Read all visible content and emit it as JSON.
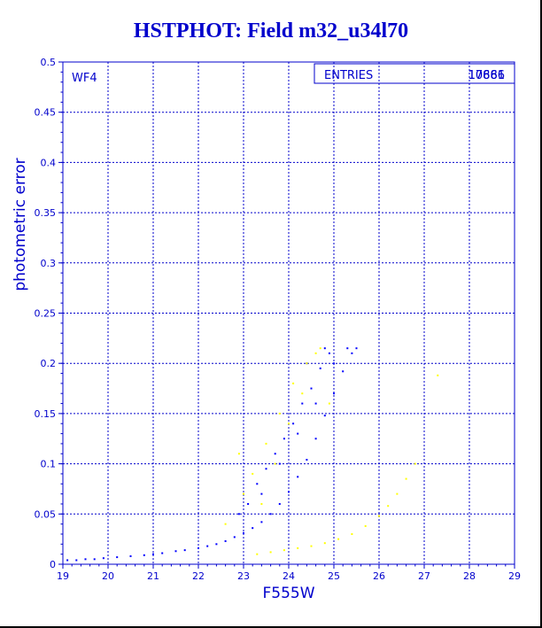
{
  "chart_data": {
    "type": "scatter",
    "title": "HSTPHOT: Field m32_u34l70",
    "xlabel": "F555W",
    "ylabel": "photometric error",
    "xlim": [
      19,
      29
    ],
    "ylim": [
      0,
      0.5
    ],
    "grid": true,
    "xticks": [
      "19",
      "20",
      "21",
      "22",
      "23",
      "24",
      "25",
      "26",
      "27",
      "28",
      "29"
    ],
    "yticks": [
      "0",
      "0.05",
      "0.1",
      "0.15",
      "0.2",
      "0.25",
      "0.3",
      "0.35",
      "0.4",
      "0.45",
      "0.5"
    ],
    "chip_label": "WF4",
    "stats_box": {
      "label": "ENTRIES",
      "value_overlay_1": "17666",
      "value_overlay_2": "10881"
    },
    "series": [
      {
        "color": "#0000ff",
        "description": "main sequence of stars along error-magnitude relation",
        "points": [
          [
            19.1,
            0.004
          ],
          [
            19.3,
            0.004
          ],
          [
            19.5,
            0.005
          ],
          [
            19.7,
            0.005
          ],
          [
            19.9,
            0.006
          ],
          [
            20.2,
            0.007
          ],
          [
            20.5,
            0.008
          ],
          [
            20.8,
            0.009
          ],
          [
            21.0,
            0.01
          ],
          [
            21.2,
            0.011
          ],
          [
            21.5,
            0.013
          ],
          [
            21.7,
            0.014
          ],
          [
            22.0,
            0.016
          ],
          [
            22.2,
            0.018
          ],
          [
            22.4,
            0.02
          ],
          [
            22.6,
            0.023
          ],
          [
            22.8,
            0.027
          ],
          [
            23.0,
            0.031
          ],
          [
            23.2,
            0.036
          ],
          [
            23.4,
            0.042
          ],
          [
            23.6,
            0.05
          ],
          [
            23.8,
            0.06
          ],
          [
            24.0,
            0.072
          ],
          [
            24.2,
            0.087
          ],
          [
            24.4,
            0.104
          ],
          [
            24.6,
            0.125
          ],
          [
            24.8,
            0.148
          ],
          [
            25.0,
            0.17
          ],
          [
            25.2,
            0.192
          ],
          [
            25.4,
            0.21
          ],
          [
            23.1,
            0.06
          ],
          [
            23.3,
            0.08
          ],
          [
            23.5,
            0.095
          ],
          [
            23.7,
            0.11
          ],
          [
            23.9,
            0.125
          ],
          [
            24.1,
            0.14
          ],
          [
            24.3,
            0.16
          ],
          [
            24.5,
            0.175
          ],
          [
            24.7,
            0.195
          ],
          [
            24.9,
            0.21
          ],
          [
            22.9,
            0.05
          ],
          [
            23.4,
            0.07
          ],
          [
            23.8,
            0.1
          ],
          [
            24.2,
            0.13
          ],
          [
            24.6,
            0.16
          ],
          [
            25.0,
            0.2
          ],
          [
            25.5,
            0.215
          ],
          [
            25.3,
            0.215
          ],
          [
            24.8,
            0.215
          ],
          [
            24.4,
            0.2
          ]
        ]
      },
      {
        "color": "#ffff00",
        "description": "secondary population points",
        "points": [
          [
            23.3,
            0.01
          ],
          [
            23.6,
            0.012
          ],
          [
            23.9,
            0.014
          ],
          [
            24.2,
            0.016
          ],
          [
            24.5,
            0.018
          ],
          [
            24.8,
            0.021
          ],
          [
            25.1,
            0.025
          ],
          [
            25.4,
            0.03
          ],
          [
            25.7,
            0.038
          ],
          [
            26.0,
            0.048
          ],
          [
            26.2,
            0.058
          ],
          [
            26.4,
            0.07
          ],
          [
            26.6,
            0.085
          ],
          [
            26.8,
            0.1
          ],
          [
            27.3,
            0.188
          ],
          [
            23.2,
            0.09
          ],
          [
            23.5,
            0.12
          ],
          [
            23.8,
            0.15
          ],
          [
            24.1,
            0.18
          ],
          [
            24.4,
            0.2
          ],
          [
            24.7,
            0.215
          ],
          [
            23.4,
            0.06
          ],
          [
            23.7,
            0.1
          ],
          [
            24.0,
            0.14
          ],
          [
            24.3,
            0.17
          ],
          [
            24.6,
            0.21
          ],
          [
            23.0,
            0.07
          ],
          [
            22.6,
            0.04
          ],
          [
            22.9,
            0.11
          ],
          [
            24.9,
            0.16
          ]
        ]
      }
    ]
  }
}
